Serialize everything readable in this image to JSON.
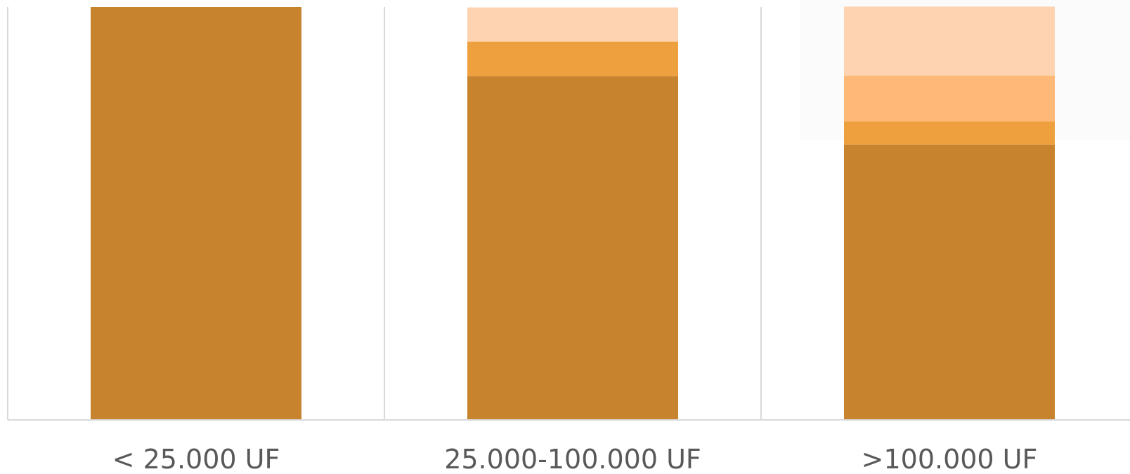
{
  "chart_data": {
    "type": "bar",
    "stacked": true,
    "normalized": true,
    "categories": [
      "< 25.000 UF",
      "25.000-100.000 UF",
      ">100.000 UF"
    ],
    "series": [
      {
        "values": [
          100,
          83.3,
          66.7
        ],
        "color": "#C8832E"
      },
      {
        "values": [
          0,
          8.3,
          5.6
        ],
        "color": "#EFA03E"
      },
      {
        "values": [
          0,
          0,
          11.1
        ],
        "color": "#FEB877"
      },
      {
        "values": [
          0,
          8.3,
          16.7
        ],
        "color": "#FED3B1"
      }
    ],
    "ylim": [
      0,
      100
    ],
    "grid": "vertical",
    "colors": {
      "axis": "#D9D9D9",
      "grid": "#D9D9D9",
      "label": "#595959",
      "background": "#FFFFFF"
    }
  }
}
